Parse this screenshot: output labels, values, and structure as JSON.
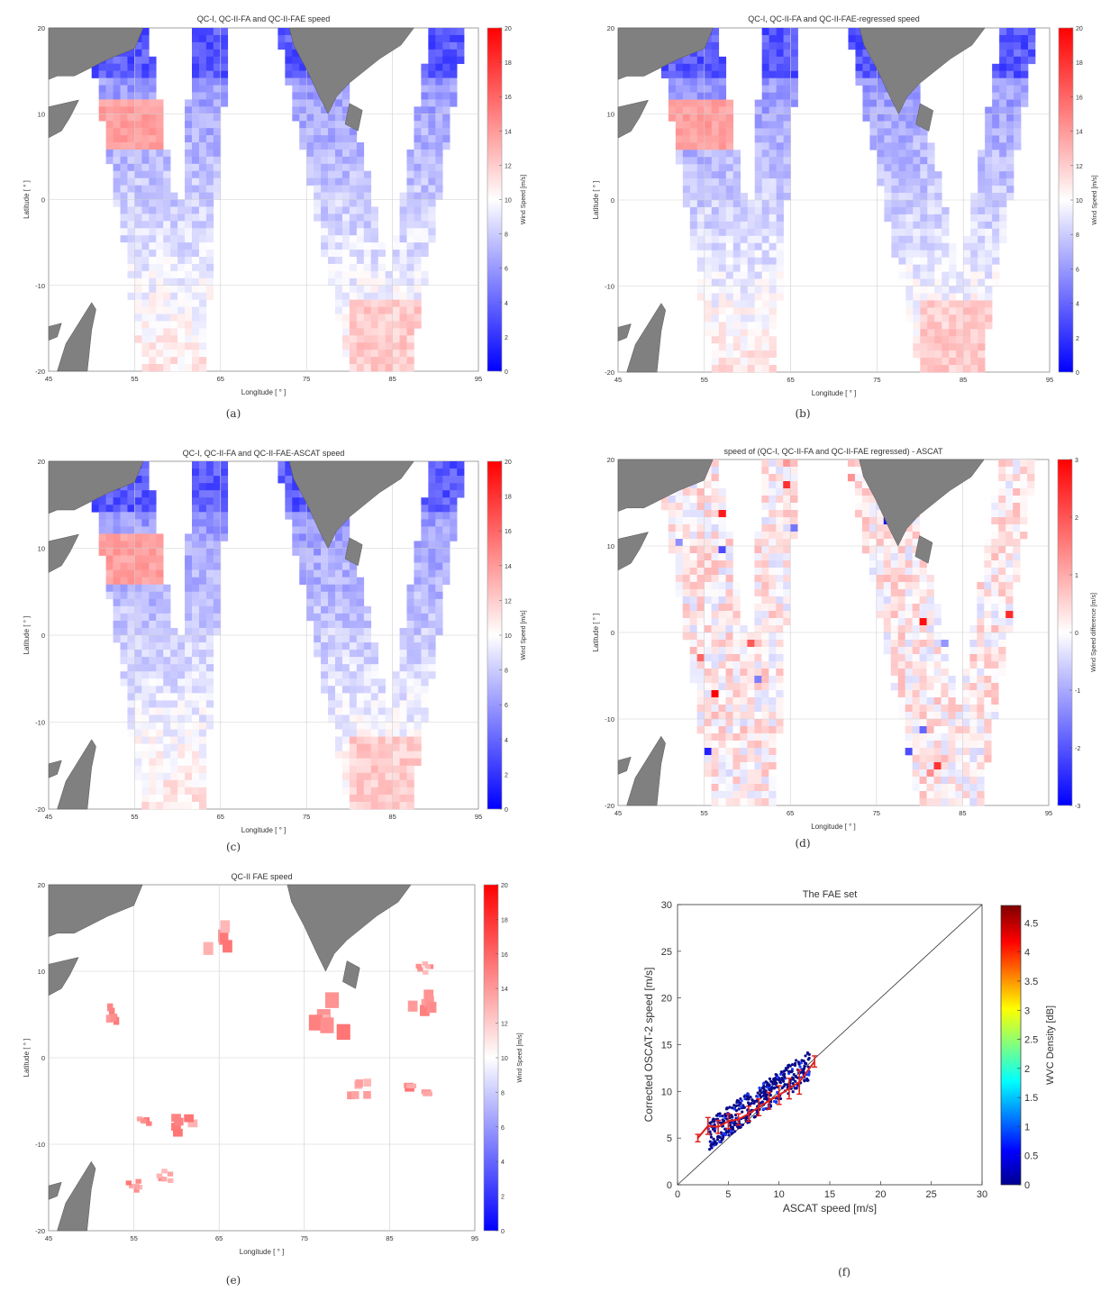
{
  "panels": [
    {
      "id": "a",
      "title": "QC-I, QC-II-FA and QC-II-FAE speed",
      "caption": "(a)",
      "cbar_label": "Wind Speed [m/s]",
      "cbar_type": "speed",
      "cbar_ticks": [
        "20",
        "18",
        "16",
        "14",
        "12",
        "10",
        "8",
        "6",
        "4",
        "2",
        "0"
      ],
      "style": "mixed"
    },
    {
      "id": "b",
      "title": "QC-I, QC-II-FA and QC-II-FAE-regressed speed",
      "caption": "(b)",
      "cbar_label": "Wind Speed [m/s]",
      "cbar_type": "speed",
      "cbar_ticks": [
        "20",
        "18",
        "16",
        "14",
        "12",
        "10",
        "8",
        "6",
        "4",
        "2",
        "0"
      ],
      "style": "mixed"
    },
    {
      "id": "c",
      "title": "QC-I, QC-II-FA and QC-II-FAE-ASCAT speed",
      "caption": "(c)",
      "cbar_label": "Wind Speed [m/s]",
      "cbar_type": "speed",
      "cbar_ticks": [
        "20",
        "18",
        "16",
        "14",
        "12",
        "10",
        "8",
        "6",
        "4",
        "2",
        "0"
      ],
      "style": "mixed"
    },
    {
      "id": "d",
      "title": "speed of (QC-I, QC-II-FA and QC-II-FAE regressed) - ASCAT",
      "caption": "(d)",
      "cbar_label": "Wind Speed difference [m/s]",
      "cbar_type": "diff",
      "cbar_ticks": [
        "3",
        "2",
        "1",
        "0",
        "-1",
        "-2",
        "-3"
      ],
      "style": "diff"
    },
    {
      "id": "e",
      "title": "QC-II FAE speed",
      "caption": "(e)",
      "cbar_label": "Wind Speed [m/s]",
      "cbar_type": "speed",
      "cbar_ticks": [
        "20",
        "18",
        "16",
        "14",
        "12",
        "10",
        "8",
        "6",
        "4",
        "2",
        "0"
      ],
      "style": "sparse"
    }
  ],
  "map_axes": {
    "xlabel": "Longitude [ ° ]",
    "ylabel": "Latitude [ ° ]",
    "xticks": [
      "45",
      "55",
      "65",
      "75",
      "85",
      "95"
    ],
    "yticks": [
      "20",
      "10",
      "0",
      "-10",
      "-20"
    ]
  },
  "chart_data": {
    "type": "scatter",
    "title": "The FAE set",
    "caption": "(f)",
    "xlabel": "ASCAT speed [m/s]",
    "ylabel": "Corrected OSCAT-2 speed [m/s]",
    "xlim": [
      0,
      30
    ],
    "ylim": [
      0,
      30
    ],
    "xticks": [
      "0",
      "5",
      "10",
      "15",
      "20",
      "25",
      "30"
    ],
    "yticks": [
      "0",
      "5",
      "10",
      "15",
      "20",
      "25",
      "30"
    ],
    "colorbar_label": "WVC Density [dB]",
    "colorbar_ticks": [
      "4.5",
      "4",
      "3.5",
      "3",
      "2.5",
      "2",
      "1.5",
      "1",
      "0.5",
      "0"
    ],
    "binned_mean": {
      "x": [
        2.0,
        3.0,
        4.0,
        5.0,
        6.0,
        7.0,
        8.0,
        9.0,
        10.0,
        11.0,
        12.0,
        13.5
      ],
      "y": [
        5.0,
        6.3,
        6.2,
        6.8,
        7.0,
        7.6,
        8.3,
        9.0,
        9.6,
        10.3,
        11.0,
        13.2
      ],
      "err": [
        0.4,
        0.9,
        0.7,
        0.8,
        0.6,
        0.8,
        0.9,
        0.9,
        1.0,
        1.1,
        1.3,
        0.6
      ]
    },
    "scatter_cloud": {
      "x_range": [
        3,
        13
      ],
      "y_spread": 1.6
    }
  }
}
